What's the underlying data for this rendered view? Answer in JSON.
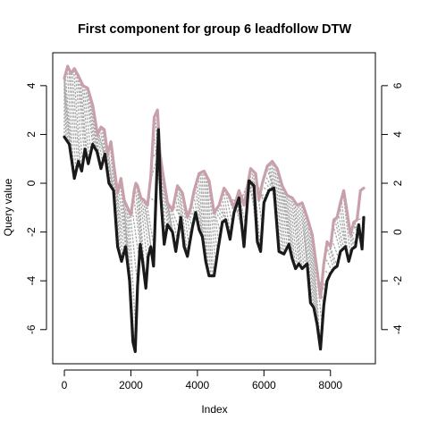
{
  "chart_data": {
    "type": "line",
    "title": "First component for group 6 leadfollow DTW",
    "xlabel": "Index",
    "ylabel": "Query value",
    "xlim": [
      -350,
      9350
    ],
    "ylim": [
      -7.4,
      5.35
    ],
    "xticks": [
      0,
      2000,
      4000,
      6000,
      8000
    ],
    "yticks": [
      -6,
      -4,
      -2,
      0,
      2,
      4
    ],
    "y2_offset": -2,
    "y2ticks": [
      -4,
      -2,
      0,
      2,
      4,
      6
    ],
    "colors": {
      "query": "#1a1a1a",
      "reference": "#c8a0aa",
      "warping_links": "#a8a8a8"
    },
    "series": [
      {
        "x": [
          0,
          150,
          300,
          420,
          520,
          620,
          720,
          850,
          980,
          1100,
          1220,
          1340,
          1480,
          1600,
          1720,
          1840,
          1960,
          2060,
          2130,
          2200,
          2280,
          2360,
          2450,
          2520,
          2600,
          2680,
          2760,
          2830,
          2900,
          3000,
          3100,
          3250,
          3350,
          3500,
          3600,
          3700,
          3850,
          3950,
          4050,
          4150,
          4250,
          4350,
          4500,
          4620,
          4750,
          4850,
          4980,
          5100,
          5250,
          5400,
          5550,
          5700,
          5800,
          5900,
          6000,
          6150,
          6300,
          6450,
          6600,
          6750,
          6850,
          6950,
          7050,
          7150,
          7300,
          7400,
          7500,
          7600,
          7700,
          7800,
          7900,
          8000,
          8100,
          8200,
          8300,
          8450,
          8550,
          8650,
          8750,
          8850,
          8950,
          9000
        ],
        "y": [
          1.9,
          1.6,
          0.2,
          0.9,
          0.5,
          1.4,
          0.8,
          1.6,
          1.3,
          0.6,
          1.2,
          0.0,
          -0.3,
          -2.6,
          -3.2,
          -2.6,
          -4.0,
          -6.5,
          -6.9,
          -4.2,
          -2.5,
          -3.3,
          -4.3,
          -3.0,
          -2.6,
          -3.4,
          -0.4,
          2.2,
          -0.6,
          -2.5,
          -1.7,
          -2.0,
          -2.8,
          -1.4,
          -2.6,
          -3.0,
          -1.8,
          -1.2,
          -1.9,
          -2.2,
          -3.2,
          -3.8,
          -3.8,
          -2.7,
          -1.6,
          -1.5,
          -2.3,
          -1.2,
          -0.6,
          -2.6,
          0.1,
          -0.1,
          -2.4,
          -2.8,
          -0.8,
          -0.3,
          -0.2,
          -2.8,
          -2.9,
          -2.5,
          -3.1,
          -3.5,
          -3.3,
          -3.5,
          -3.3,
          -4.9,
          -5.1,
          -5.8,
          -6.8,
          -5.0,
          -4.0,
          -3.7,
          -3.5,
          -3.4,
          -2.8,
          -2.6,
          -3.2,
          -2.7,
          -2.6,
          -1.7,
          -2.7,
          -1.4
        ]
      },
      {
        "x": [
          0,
          100,
          200,
          300,
          420,
          560,
          700,
          850,
          1000,
          1100,
          1200,
          1300,
          1400,
          1500,
          1600,
          1700,
          1800,
          1900,
          2000,
          2100,
          2150,
          2200,
          2300,
          2400,
          2500,
          2600,
          2700,
          2800,
          2870,
          2950,
          3100,
          3250,
          3400,
          3550,
          3700,
          3800,
          3900,
          4050,
          4200,
          4350,
          4500,
          4650,
          4800,
          4950,
          5100,
          5250,
          5400,
          5600,
          5750,
          5850,
          5950,
          6100,
          6250,
          6400,
          6550,
          6700,
          6850,
          7000,
          7150,
          7300,
          7450,
          7600,
          7700,
          7800,
          7900,
          8000,
          8100,
          8200,
          8300,
          8400,
          8500,
          8600,
          8700,
          8800,
          8900,
          9000
        ],
        "y": [
          4.3,
          4.8,
          4.5,
          4.7,
          4.4,
          4.0,
          3.9,
          3.2,
          2.0,
          2.3,
          2.2,
          1.2,
          1.7,
          0.6,
          -0.4,
          0.2,
          -0.7,
          -1.0,
          -1.3,
          -0.3,
          0.0,
          -0.1,
          -0.6,
          -0.7,
          -0.9,
          0.3,
          2.7,
          3.0,
          1.3,
          0.5,
          -0.8,
          -1.1,
          -0.1,
          -0.4,
          -1.4,
          -1.0,
          -0.3,
          0.4,
          0.5,
          0.1,
          -1.2,
          -0.9,
          -0.2,
          -0.5,
          -1.0,
          -0.3,
          -0.9,
          0.6,
          0.4,
          -0.7,
          0.0,
          0.7,
          0.9,
          0.6,
          -0.1,
          -0.5,
          -0.6,
          -0.9,
          -0.8,
          -1.4,
          -2.1,
          -3.6,
          -4.7,
          -3.3,
          -2.4,
          -2.6,
          -1.5,
          -1.4,
          -0.8,
          -0.3,
          -1.2,
          -2.1,
          -1.6,
          -1.5,
          -0.3,
          -0.2
        ]
      }
    ]
  }
}
